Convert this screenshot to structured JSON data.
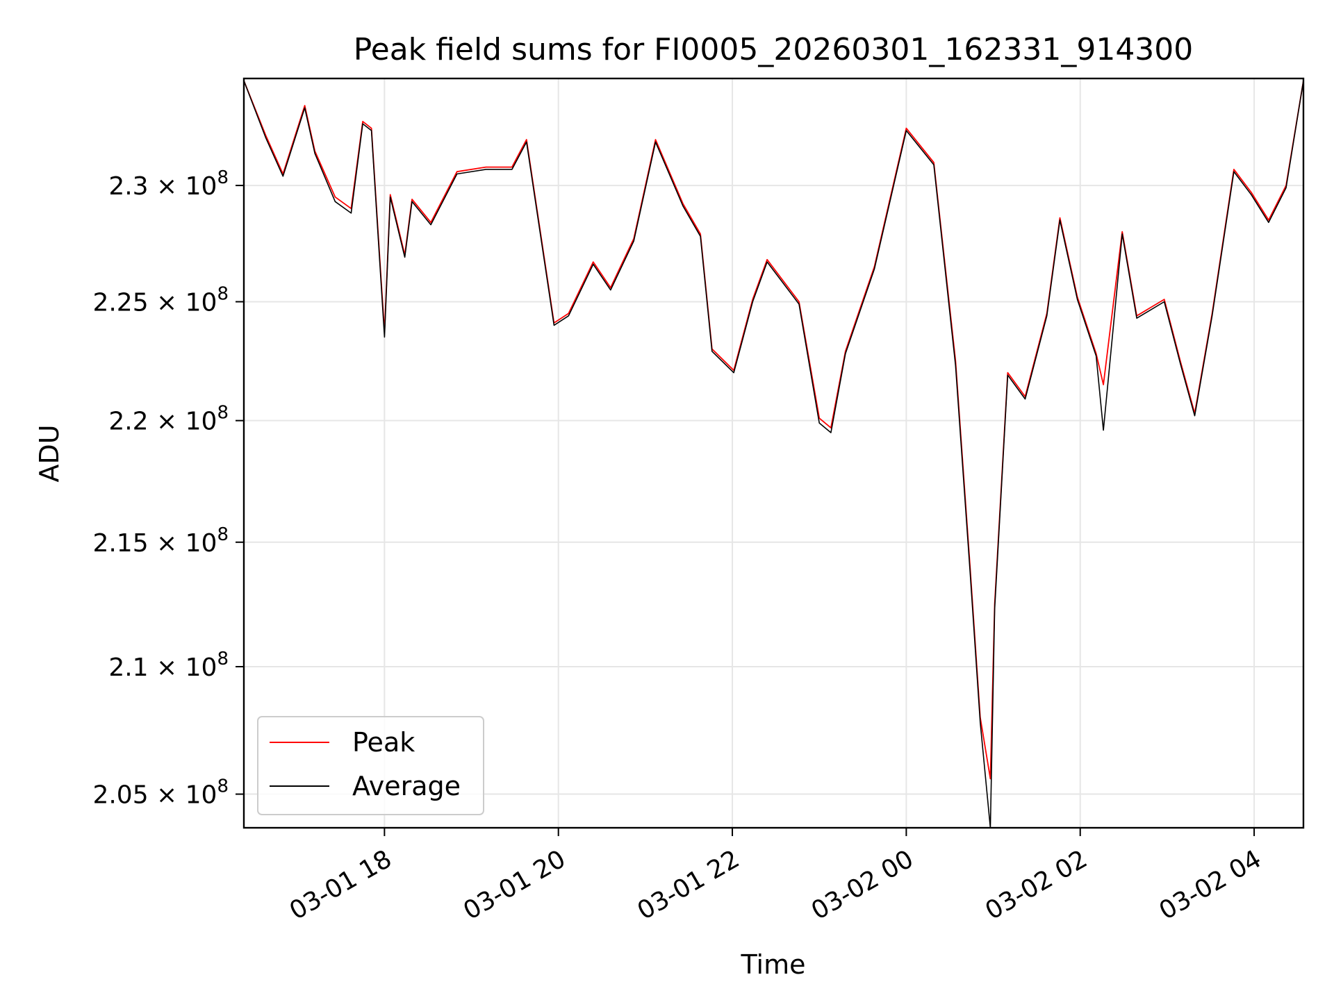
{
  "chart_data": {
    "type": "line",
    "title": "Peak field sums for FI0005_20260301_162331_914300",
    "xlabel": "Time",
    "ylabel": "ADU",
    "yscale": "log",
    "xlim": [
      "2026-03-01 16:23",
      "2026-03-02 04:34"
    ],
    "ylim": [
      203700000,
      234700000
    ],
    "grid": true,
    "legend_position": "lower-left",
    "x_ticks": [
      {
        "value": "2026-03-01 18:00",
        "label": "03-01 18"
      },
      {
        "value": "2026-03-01 20:00",
        "label": "03-01 20"
      },
      {
        "value": "2026-03-01 22:00",
        "label": "03-01 22"
      },
      {
        "value": "2026-03-02 00:00",
        "label": "03-02 00"
      },
      {
        "value": "2026-03-02 02:00",
        "label": "03-02 02"
      },
      {
        "value": "2026-03-02 04:00",
        "label": "03-02 04"
      }
    ],
    "y_ticks": [
      {
        "value": 205000000,
        "mantissa": "2.05",
        "exp": "8"
      },
      {
        "value": 210000000,
        "mantissa": "2.1",
        "exp": "8"
      },
      {
        "value": 215000000,
        "mantissa": "2.15",
        "exp": "8"
      },
      {
        "value": 220000000,
        "mantissa": "2.2",
        "exp": "8"
      },
      {
        "value": 225000000,
        "mantissa": "2.25",
        "exp": "8"
      },
      {
        "value": 230000000,
        "mantissa": "2.3",
        "exp": "8"
      }
    ],
    "series": [
      {
        "name": "Peak",
        "color": "#ff0000",
        "x": [
          "2026-03-01 16:23",
          "2026-03-01 16:38",
          "2026-03-01 16:50",
          "2026-03-01 17:05",
          "2026-03-01 17:12",
          "2026-03-01 17:26",
          "2026-03-01 17:37",
          "2026-03-01 17:45",
          "2026-03-01 17:51",
          "2026-03-01 18:00",
          "2026-03-01 18:04",
          "2026-03-01 18:14",
          "2026-03-01 18:19",
          "2026-03-01 18:32",
          "2026-03-01 18:50",
          "2026-03-01 19:10",
          "2026-03-01 19:28",
          "2026-03-01 19:38",
          "2026-03-01 19:57",
          "2026-03-01 20:07",
          "2026-03-01 20:24",
          "2026-03-01 20:36",
          "2026-03-01 20:52",
          "2026-03-01 21:07",
          "2026-03-01 21:26",
          "2026-03-01 21:38",
          "2026-03-01 21:46",
          "2026-03-01 22:01",
          "2026-03-01 22:14",
          "2026-03-01 22:24",
          "2026-03-01 22:46",
          "2026-03-01 23:00",
          "2026-03-01 23:08",
          "2026-03-01 23:18",
          "2026-03-01 23:38",
          "2026-03-02 00:00",
          "2026-03-02 00:19",
          "2026-03-02 00:34",
          "2026-03-02 00:44",
          "2026-03-02 00:51",
          "2026-03-02 00:58",
          "2026-03-02 01:01",
          "2026-03-02 01:10",
          "2026-03-02 01:22",
          "2026-03-02 01:37",
          "2026-03-02 01:46",
          "2026-03-02 01:58",
          "2026-03-02 02:11",
          "2026-03-02 02:16",
          "2026-03-02 02:29",
          "2026-03-02 02:39",
          "2026-03-02 02:58",
          "2026-03-02 03:09",
          "2026-03-02 03:19",
          "2026-03-02 03:31",
          "2026-03-02 03:46",
          "2026-03-02 03:58",
          "2026-03-02 04:10",
          "2026-03-02 04:22",
          "2026-03-02 04:34"
        ],
        "values": [
          234600000,
          232200000,
          230500000,
          233500000,
          231500000,
          229500000,
          229000000,
          232800000,
          232500000,
          223700000,
          229600000,
          227000000,
          229400000,
          228400000,
          230600000,
          230800000,
          230800000,
          232000000,
          224100000,
          224500000,
          226700000,
          225600000,
          227700000,
          232000000,
          229200000,
          227900000,
          223000000,
          222100000,
          225100000,
          226800000,
          225000000,
          220100000,
          219700000,
          222900000,
          226500000,
          232500000,
          231000000,
          222500000,
          214000000,
          208000000,
          205600000,
          212500000,
          222000000,
          221000000,
          224500000,
          228600000,
          225200000,
          222800000,
          221500000,
          228000000,
          224400000,
          225100000,
          222500000,
          220300000,
          224500000,
          230700000,
          229700000,
          228500000,
          230000000,
          234600000
        ]
      },
      {
        "name": "Average",
        "color": "#000000",
        "x": [
          "2026-03-01 16:23",
          "2026-03-01 16:38",
          "2026-03-01 16:50",
          "2026-03-01 17:05",
          "2026-03-01 17:12",
          "2026-03-01 17:26",
          "2026-03-01 17:37",
          "2026-03-01 17:45",
          "2026-03-01 17:51",
          "2026-03-01 18:00",
          "2026-03-01 18:04",
          "2026-03-01 18:14",
          "2026-03-01 18:19",
          "2026-03-01 18:32",
          "2026-03-01 18:50",
          "2026-03-01 19:10",
          "2026-03-01 19:28",
          "2026-03-01 19:38",
          "2026-03-01 19:57",
          "2026-03-01 20:07",
          "2026-03-01 20:24",
          "2026-03-01 20:36",
          "2026-03-01 20:52",
          "2026-03-01 21:07",
          "2026-03-01 21:26",
          "2026-03-01 21:38",
          "2026-03-01 21:46",
          "2026-03-01 22:01",
          "2026-03-01 22:14",
          "2026-03-01 22:24",
          "2026-03-01 22:46",
          "2026-03-01 23:00",
          "2026-03-01 23:08",
          "2026-03-01 23:18",
          "2026-03-01 23:38",
          "2026-03-02 00:00",
          "2026-03-02 00:19",
          "2026-03-02 00:34",
          "2026-03-02 00:44",
          "2026-03-02 00:51",
          "2026-03-02 00:58",
          "2026-03-02 01:01",
          "2026-03-02 01:10",
          "2026-03-02 01:22",
          "2026-03-02 01:37",
          "2026-03-02 01:46",
          "2026-03-02 01:58",
          "2026-03-02 02:11",
          "2026-03-02 02:16",
          "2026-03-02 02:29",
          "2026-03-02 02:39",
          "2026-03-02 02:58",
          "2026-03-02 03:09",
          "2026-03-02 03:19",
          "2026-03-02 03:31",
          "2026-03-02 03:46",
          "2026-03-02 03:58",
          "2026-03-02 04:10",
          "2026-03-02 04:22",
          "2026-03-02 04:34"
        ],
        "values": [
          234600000,
          232100000,
          230400000,
          233400000,
          231400000,
          229300000,
          228800000,
          232700000,
          232400000,
          223500000,
          229500000,
          226900000,
          229300000,
          228300000,
          230500000,
          230700000,
          230700000,
          231900000,
          224000000,
          224400000,
          226600000,
          225500000,
          227600000,
          231900000,
          229100000,
          227800000,
          222900000,
          222000000,
          225000000,
          226700000,
          224900000,
          219900000,
          219500000,
          222800000,
          226400000,
          232400000,
          230900000,
          222300000,
          213800000,
          207800000,
          203700000,
          212300000,
          221900000,
          220900000,
          224400000,
          228500000,
          225100000,
          222700000,
          219600000,
          227900000,
          224300000,
          225000000,
          222400000,
          220200000,
          224400000,
          230600000,
          229600000,
          228400000,
          229900000,
          234600000
        ]
      }
    ]
  }
}
